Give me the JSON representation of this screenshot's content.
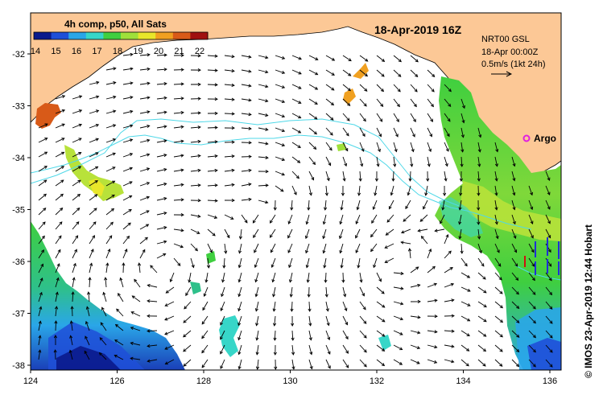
{
  "legend": {
    "title": "4h comp, p50, All Sats",
    "ticks": [
      "14",
      "15",
      "16",
      "17",
      "18",
      "19",
      "20",
      "21",
      "22"
    ],
    "colors": [
      "#0a1a8c",
      "#1f4fd8",
      "#2aa6e8",
      "#37d6c8",
      "#3fcf3f",
      "#9fe03a",
      "#e8e62a",
      "#f0a020",
      "#d85a18",
      "#a01010"
    ]
  },
  "header": {
    "date": "18-Apr-2019 16Z"
  },
  "currents": {
    "source": "NRT00 GSL",
    "time": "18-Apr 00:00Z",
    "scale": "0.5m/s (1kt 24h)"
  },
  "argo": {
    "label": "Argo",
    "color": "#e020e0"
  },
  "credit": "© IMOS 23-Apr-2019 12:44 Hobart",
  "axes": {
    "lon_ticks": [
      "124",
      "126",
      "128",
      "130",
      "132",
      "134",
      "136"
    ],
    "lat_ticks": [
      "-32",
      "-33",
      "-34",
      "-35",
      "-36",
      "-37",
      "-38"
    ]
  },
  "colors": {
    "land": "#fcc896",
    "sea": "#ffffff",
    "contour": "#4fd8e8",
    "arrow": "#000000"
  }
}
